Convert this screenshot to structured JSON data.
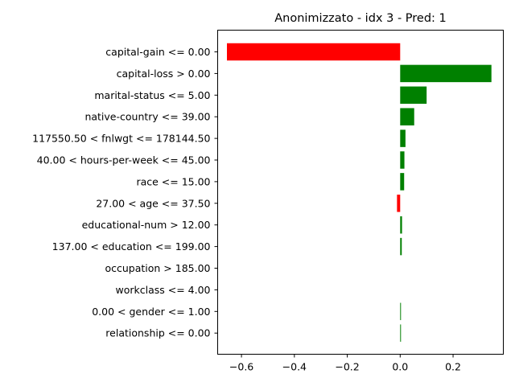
{
  "chart_data": {
    "type": "bar",
    "orientation": "horizontal",
    "title": "Anonimizzato - idx 3 - Pred: 1",
    "xlabel": "",
    "ylabel": "",
    "xlim": [
      -0.69,
      0.39
    ],
    "xticks": [
      -0.6,
      -0.4,
      -0.2,
      0.0,
      0.2
    ],
    "xtick_labels": [
      "−0.6",
      "−0.4",
      "−0.2",
      "0.0",
      "0.2"
    ],
    "grid": false,
    "colors": {
      "positive": "#008000",
      "negative": "#ff0000"
    },
    "categories": [
      "capital-gain <= 0.00",
      "capital-loss > 0.00",
      "marital-status <= 5.00",
      "native-country <= 39.00",
      "117550.50 < fnlwgt <= 178144.50",
      "40.00 < hours-per-week <= 45.00",
      "race <= 15.00",
      "27.00 < age <= 37.50",
      "educational-num > 12.00",
      "137.00 < education <= 199.00",
      "occupation > 185.00",
      "workclass <= 4.00",
      "0.00 < gender <= 1.00",
      "relationship <= 0.00"
    ],
    "values": [
      -0.655,
      0.345,
      0.1,
      0.053,
      0.02,
      0.016,
      0.015,
      -0.012,
      0.007,
      0.006,
      0.0,
      0.0,
      0.003,
      0.003
    ]
  }
}
